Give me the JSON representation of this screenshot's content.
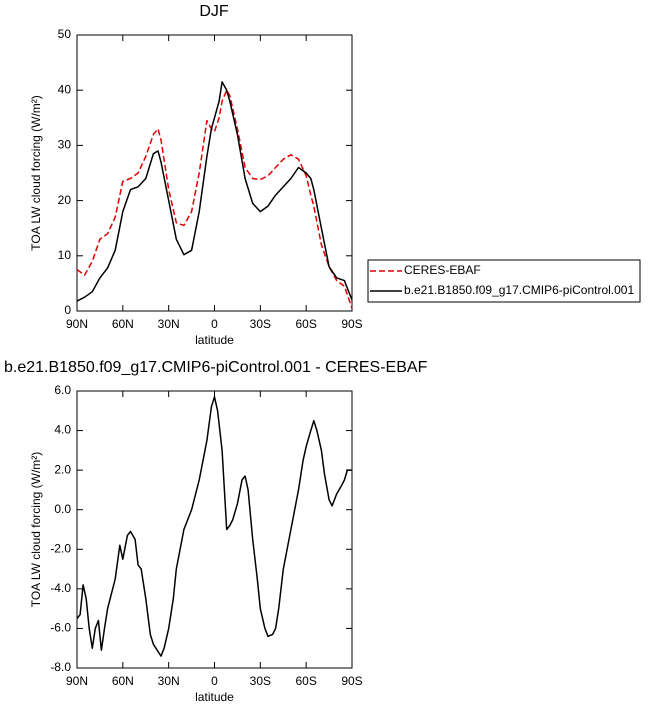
{
  "chart_data": [
    {
      "type": "line",
      "title": "DJF",
      "xlabel": "latitude",
      "ylabel": "TOA LW cloud forcing (W/m²)",
      "xlim": [
        90,
        -90
      ],
      "xticks": [
        {
          "value": 90,
          "label": "90N"
        },
        {
          "value": 60,
          "label": "60N"
        },
        {
          "value": 30,
          "label": "30N"
        },
        0,
        {
          "value": -30,
          "label": "30S"
        },
        {
          "value": -60,
          "label": "60S"
        },
        {
          "value": -90,
          "label": "90S"
        }
      ],
      "ylim": [
        0,
        50
      ],
      "yticks": [
        0,
        10,
        20,
        30,
        40,
        50
      ],
      "legend": "right",
      "x": [
        90,
        85,
        80,
        75,
        70,
        65,
        60,
        55,
        50,
        45,
        40,
        37,
        35,
        30,
        25,
        20,
        15,
        10,
        5,
        2,
        0,
        -3,
        -5,
        -8,
        -10,
        -15,
        -20,
        -25,
        -30,
        -35,
        -40,
        -45,
        -50,
        -55,
        -60,
        -63,
        -65,
        -70,
        -75,
        -80,
        -85,
        -90
      ],
      "series": [
        {
          "name": "CERES-EBAF",
          "color": "#e00000",
          "dashed": true,
          "values": [
            7.5,
            6.5,
            9,
            13,
            14,
            17,
            23.5,
            24,
            25,
            28,
            32,
            33,
            31,
            22,
            16,
            15.5,
            18,
            25,
            34.5,
            33,
            32.5,
            35,
            38,
            40,
            39,
            33,
            26,
            24,
            23.8,
            24.5,
            26,
            27.5,
            28.3,
            27.5,
            24.5,
            21,
            19,
            12,
            8,
            5.5,
            4.5,
            0.5
          ]
        },
        {
          "name": "b.e21.B1850.f09_g17.CMIP6-piControl.001",
          "color": "#000000",
          "dashed": false,
          "values": [
            1.8,
            2.5,
            3.5,
            6,
            7.8,
            11,
            18,
            22,
            22.5,
            24,
            28.5,
            29,
            27,
            20,
            13,
            10.2,
            11,
            18,
            28,
            33,
            35,
            38,
            41.5,
            40,
            38,
            32,
            24,
            19.5,
            18,
            19,
            21,
            22.5,
            24,
            26,
            25,
            24,
            22,
            15,
            8,
            6,
            5.5,
            2
          ]
        }
      ]
    },
    {
      "type": "line",
      "title": "b.e21.B1850.f09_g17.CMIP6-piControl.001 - CERES-EBAF",
      "xlabel": "latitude",
      "ylabel": "TOA LW cloud forcing (W/m²)",
      "xlim": [
        90,
        -90
      ],
      "xticks": [
        {
          "value": 90,
          "label": "90N"
        },
        {
          "value": 60,
          "label": "60N"
        },
        {
          "value": 30,
          "label": "30N"
        },
        0,
        {
          "value": -30,
          "label": "30S"
        },
        {
          "value": -60,
          "label": "60S"
        },
        {
          "value": -90,
          "label": "90S"
        }
      ],
      "ylim": [
        -8,
        6
      ],
      "yticks": [
        {
          "value": -8,
          "label": "-8.0"
        },
        {
          "value": -6,
          "label": "-6.0"
        },
        {
          "value": -4,
          "label": "-4.0"
        },
        {
          "value": -2,
          "label": "-2.0"
        },
        {
          "value": 0,
          "label": "0.0"
        },
        {
          "value": 2,
          "label": "2.0"
        },
        {
          "value": 4,
          "label": "4.0"
        },
        {
          "value": 6,
          "label": "6.0"
        }
      ],
      "x": [
        90,
        88,
        86,
        84,
        82,
        80,
        78,
        76,
        74,
        72,
        70,
        65,
        62,
        60,
        57,
        55,
        52,
        50,
        48,
        45,
        42,
        40,
        35,
        33,
        30,
        27,
        25,
        20,
        15,
        10,
        5,
        2,
        0,
        -2,
        -5,
        -8,
        -10,
        -12,
        -15,
        -18,
        -20,
        -22,
        -25,
        -28,
        -30,
        -33,
        -35,
        -38,
        -40,
        -42,
        -45,
        -50,
        -55,
        -58,
        -60,
        -63,
        -65,
        -67,
        -70,
        -72,
        -75,
        -77,
        -80,
        -83,
        -85,
        -87,
        -90
      ],
      "series": [
        {
          "color": "#000000",
          "dashed": false,
          "values": [
            -5.5,
            -5.3,
            -3.8,
            -4.5,
            -6,
            -7,
            -6,
            -5.6,
            -7.1,
            -6,
            -5,
            -3.5,
            -1.8,
            -2.5,
            -1.3,
            -1.1,
            -1.5,
            -2.8,
            -3,
            -4.5,
            -6.3,
            -6.8,
            -7.4,
            -7,
            -6,
            -4.5,
            -3,
            -1,
            0,
            1.5,
            3.5,
            5.2,
            5.7,
            5,
            3,
            -1,
            -0.8,
            -0.5,
            0.3,
            1.5,
            1.7,
            1,
            -1.5,
            -3.5,
            -5,
            -6,
            -6.4,
            -6.3,
            -6,
            -5,
            -3,
            -1,
            1,
            2.5,
            3.2,
            4,
            4.5,
            4,
            3,
            1.8,
            0.5,
            0.2,
            0.8,
            1.2,
            1.5,
            2,
            2
          ]
        }
      ]
    }
  ]
}
